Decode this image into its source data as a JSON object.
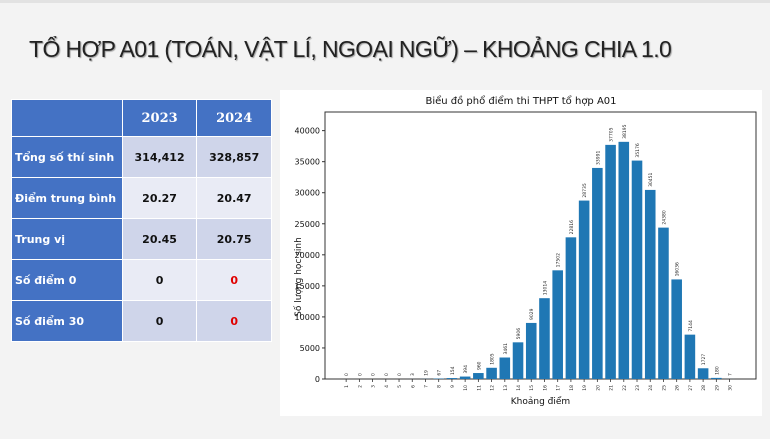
{
  "slide": {
    "title": "TỔ HỢP A01 (TOÁN, VẬT LÍ, NGOẠI NGỮ) – KHOẢNG CHIA 1.0"
  },
  "stats_table": {
    "headers": [
      "",
      "2023",
      "2024"
    ],
    "rows": [
      {
        "label": "Tổng số thí sinh",
        "v2023": "314,412",
        "v2024": "328,857"
      },
      {
        "label": "Điểm trung bình",
        "v2023": "20.27",
        "v2024": "20.47"
      },
      {
        "label": "Trung vị",
        "v2023": "20.45",
        "v2024": "20.75"
      },
      {
        "label": "Số điểm 0",
        "v2023": "0",
        "v2024": "0"
      },
      {
        "label": "Số điểm 30",
        "v2023": "0",
        "v2024": "0"
      }
    ]
  },
  "colors": {
    "table_header": "#4472c4",
    "row_dark": "#cfd5ea",
    "row_light": "#e9ebf5",
    "highlight_red": "#e00000",
    "bar": "#1f77b4"
  },
  "chart_data": {
    "type": "bar",
    "title": "Biểu đồ phổ điểm thi THPT tổ hợp A01",
    "xlabel": "Khoảng điểm",
    "ylabel": "Số lượng học sinh",
    "categories": [
      "1",
      "2",
      "3",
      "4",
      "5",
      "6",
      "7",
      "8",
      "9",
      "10",
      "11",
      "12",
      "13",
      "14",
      "15",
      "16",
      "17",
      "18",
      "19",
      "20",
      "21",
      "22",
      "23",
      "24",
      "25",
      "26",
      "27",
      "28",
      "29",
      "30"
    ],
    "values": [
      0,
      0,
      0,
      0,
      0,
      3,
      19,
      67,
      154,
      394,
      960,
      1805,
      3461,
      5906,
      9029,
      13014,
      17502,
      22816,
      28735,
      33991,
      37705,
      38195,
      35176,
      30451,
      24380,
      16036,
      7144,
      1727,
      180,
      7
    ],
    "yticks": [
      0,
      5000,
      10000,
      15000,
      20000,
      25000,
      30000,
      35000,
      40000
    ],
    "ylim": [
      0,
      43000
    ],
    "grid": false,
    "legend": null,
    "data_labels": true
  }
}
